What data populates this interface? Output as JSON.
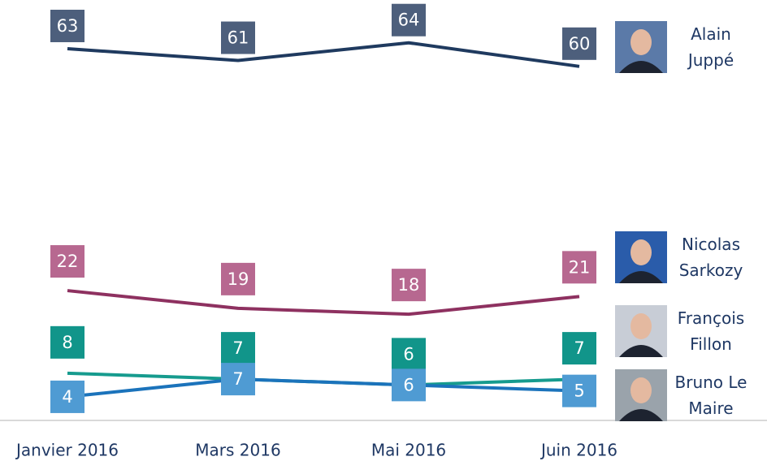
{
  "chart_data": {
    "type": "line",
    "categories": [
      "Janvier 2016",
      "Mars 2016",
      "Mai 2016",
      "Juin 2016"
    ],
    "series": [
      {
        "name": "Alain Juppé",
        "color": "#1f3a5f",
        "label_color": "#4d5f7c",
        "values": [
          63,
          61,
          64,
          60
        ]
      },
      {
        "name": "Nicolas Sarkozy",
        "color": "#8e3160",
        "label_color": "#b76890",
        "values": [
          22,
          19,
          18,
          21
        ]
      },
      {
        "name": "François Fillon",
        "color": "#169b8e",
        "label_color": "#11958a",
        "values": [
          8,
          7,
          6,
          7
        ]
      },
      {
        "name": "Bruno Le Maire",
        "color": "#1b73bb",
        "label_color": "#4f9bd3",
        "values": [
          4,
          7,
          6,
          5
        ]
      }
    ]
  }
}
